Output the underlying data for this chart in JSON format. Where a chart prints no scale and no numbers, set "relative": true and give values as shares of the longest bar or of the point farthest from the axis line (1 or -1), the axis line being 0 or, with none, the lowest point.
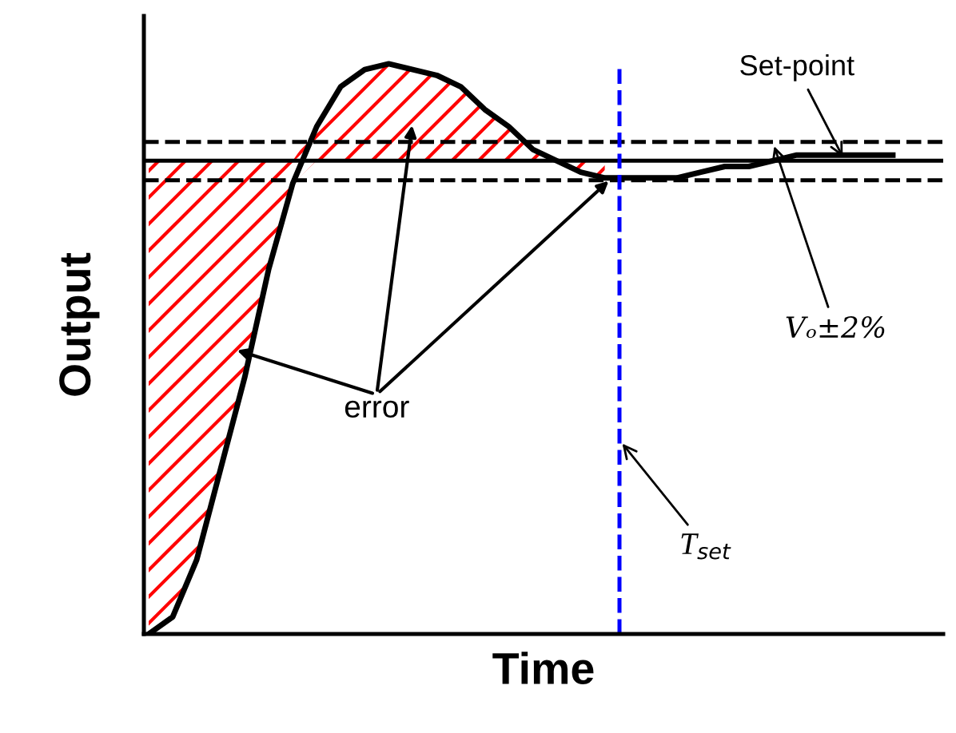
{
  "chart_data": {
    "type": "line",
    "relative": true,
    "xlabel": "Time",
    "ylabel": "Output",
    "categories": [
      null,
      null,
      null,
      null,
      null,
      null,
      null,
      null,
      null,
      null,
      null,
      null,
      null,
      null,
      null,
      null,
      null,
      null,
      null,
      null,
      null,
      null,
      null,
      null,
      null,
      null,
      null,
      null,
      null,
      null,
      null,
      null
    ],
    "series": [
      {
        "color": "#000000",
        "values": [
          0,
          0.03,
          0.13,
          0.29,
          0.45,
          0.64,
          0.79,
          0.89,
          0.96,
          0.99,
          1,
          0.99,
          0.98,
          0.96,
          0.92,
          0.89,
          0.85,
          0.83,
          0.81,
          0.8,
          0.8,
          0.8,
          0.8,
          0.81,
          0.82,
          0.82,
          0.83,
          0.84,
          0.84,
          0.84,
          0.84,
          0.84
        ],
        "lower": [
          0,
          0.03,
          0.13,
          0.29,
          0.45,
          0.64,
          0.79,
          0.83,
          0.83,
          0.83,
          0.83,
          0.83,
          0.83,
          0.83,
          0.83,
          0.83,
          0.83,
          0.83,
          0.81,
          0.8,
          null,
          null,
          null,
          null,
          null,
          null,
          null,
          null,
          null,
          null,
          null,
          null
        ],
        "upper": [
          0.83,
          0.83,
          0.83,
          0.83,
          0.83,
          0.83,
          0.83,
          0.89,
          0.96,
          0.99,
          1,
          0.99,
          0.98,
          0.96,
          0.92,
          0.89,
          0.85,
          0.83,
          0.83,
          0.83,
          null,
          null,
          null,
          null,
          null,
          null,
          null,
          null,
          null,
          null,
          null,
          null
        ]
      }
    ],
    "ref_lines": [
      {
        "axis": "y",
        "value": 0.83,
        "label": "Set-point",
        "color": "#000000",
        "line_style": "solid"
      },
      {
        "axis": "y",
        "value": 0.863,
        "label": "Vₒ±2%",
        "color": "#000000",
        "line_style": "dashed"
      },
      {
        "axis": "y",
        "value": 0.796,
        "label": null,
        "color": "#000000",
        "line_style": "dashed"
      }
    ],
    "annotations": [
      "error",
      "T$_{set}$"
    ],
    "marker": "none",
    "line_style": "solid"
  }
}
